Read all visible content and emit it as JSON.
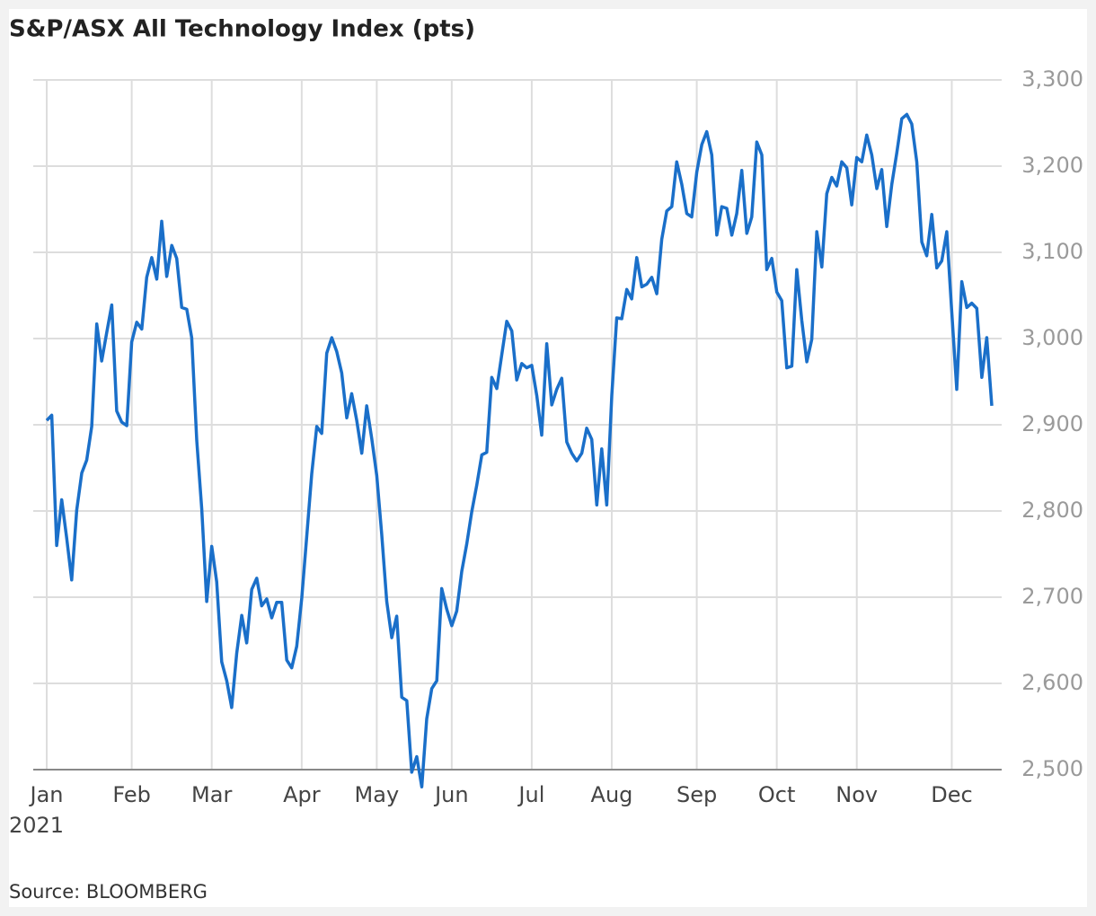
{
  "chart_data": {
    "type": "line",
    "title": "S&P/ASX All Technology Index (pts)",
    "year_label": "2021",
    "source": "Source: BLOOMBERG",
    "categories": [
      "Jan",
      null,
      null,
      null,
      null,
      null,
      null,
      null,
      null,
      null,
      null,
      null,
      null,
      null,
      null,
      null,
      null,
      "Feb",
      null,
      null,
      null,
      null,
      null,
      null,
      null,
      null,
      null,
      null,
      null,
      null,
      null,
      null,
      null,
      "Mar",
      null,
      null,
      null,
      null,
      null,
      null,
      null,
      null,
      null,
      null,
      null,
      null,
      null,
      null,
      null,
      null,
      null,
      "Apr",
      null,
      null,
      null,
      null,
      null,
      null,
      null,
      null,
      null,
      null,
      null,
      null,
      null,
      null,
      "May",
      null,
      null,
      null,
      null,
      null,
      null,
      null,
      null,
      null,
      null,
      null,
      null,
      null,
      null,
      "Jun",
      null,
      null,
      null,
      null,
      null,
      null,
      null,
      null,
      null,
      null,
      null,
      null,
      null,
      null,
      null,
      "Jul",
      null,
      null,
      null,
      null,
      null,
      null,
      null,
      null,
      null,
      null,
      null,
      null,
      null,
      null,
      null,
      "Aug",
      null,
      null,
      null,
      null,
      null,
      null,
      null,
      null,
      null,
      null,
      null,
      null,
      null,
      null,
      null,
      null,
      "Sep",
      null,
      null,
      null,
      null,
      null,
      null,
      null,
      null,
      null,
      null,
      null,
      null,
      null,
      null,
      null,
      "Oct",
      null,
      null,
      null,
      null,
      null,
      null,
      null,
      null,
      null,
      null,
      null,
      null,
      null,
      null,
      null,
      "Nov",
      null,
      null,
      null,
      null,
      null,
      null,
      null,
      null,
      null,
      null,
      null,
      null,
      null,
      null,
      null,
      null,
      null,
      null,
      "Dec",
      null,
      null,
      null,
      null,
      null,
      null,
      null,
      null
    ],
    "series": [
      {
        "name": "S&P/ASX All Technology Index",
        "color": "#1a6fc9",
        "values": [
          2905,
          2911,
          2760,
          2813,
          2768,
          2720,
          2801,
          2844,
          2859,
          2898,
          3017,
          2974,
          3007,
          3039,
          2916,
          2903,
          2899,
          2996,
          3019,
          3011,
          3071,
          3094,
          3069,
          3136,
          3072,
          3108,
          3093,
          3036,
          3034,
          3001,
          2882,
          2802,
          2695,
          2759,
          2718,
          2625,
          2603,
          2572,
          2635,
          2679,
          2647,
          2709,
          2722,
          2690,
          2698,
          2676,
          2694,
          2694,
          2627,
          2618,
          2643,
          2699,
          2770,
          2843,
          2898,
          2890,
          2983,
          3001,
          2985,
          2960,
          2908,
          2936,
          2905,
          2867,
          2922,
          2884,
          2841,
          2773,
          2695,
          2653,
          2678,
          2584,
          2580,
          2497,
          2515,
          2480,
          2559,
          2594,
          2603,
          2710,
          2686,
          2667,
          2684,
          2730,
          2762,
          2799,
          2830,
          2865,
          2868,
          2955,
          2942,
          2981,
          3020,
          3009,
          2952,
          2971,
          2966,
          2969,
          2934,
          2888,
          2994,
          2923,
          2941,
          2954,
          2880,
          2867,
          2858,
          2867,
          2896,
          2883,
          2807,
          2872,
          2807,
          2934,
          3024,
          3023,
          3057,
          3046,
          3094,
          3060,
          3063,
          3071,
          3052,
          3115,
          3148,
          3153,
          3205,
          3179,
          3145,
          3141,
          3193,
          3225,
          3240,
          3213,
          3120,
          3153,
          3151,
          3120,
          3145,
          3195,
          3122,
          3141,
          3228,
          3213,
          3080,
          3093,
          3054,
          3044,
          2966,
          2968,
          3080,
          3021,
          2973,
          2999,
          3124,
          3083,
          3168,
          3187,
          3177,
          3205,
          3198,
          3155,
          3210,
          3205,
          3236,
          3213,
          3174,
          3196,
          3130,
          3179,
          3215,
          3255,
          3260,
          3249,
          3205,
          3112,
          3096,
          3144,
          3082,
          3090,
          3124,
          3030,
          2941,
          3066,
          3036,
          3041,
          3035,
          2955,
          3001,
          2922
        ]
      }
    ],
    "ylim": [
      2500,
      3300
    ],
    "yticks": [
      {
        "value": 2500,
        "label": "2,500"
      },
      {
        "value": 2600,
        "label": "2,600"
      },
      {
        "value": 2700,
        "label": "2,700"
      },
      {
        "value": 2800,
        "label": "2,800"
      },
      {
        "value": 2900,
        "label": "2,900"
      },
      {
        "value": 3000,
        "label": "3,000"
      },
      {
        "value": 3100,
        "label": "3,100"
      },
      {
        "value": 3200,
        "label": "3,200"
      },
      {
        "value": 3300,
        "label": "3,300"
      }
    ],
    "grid": true
  }
}
